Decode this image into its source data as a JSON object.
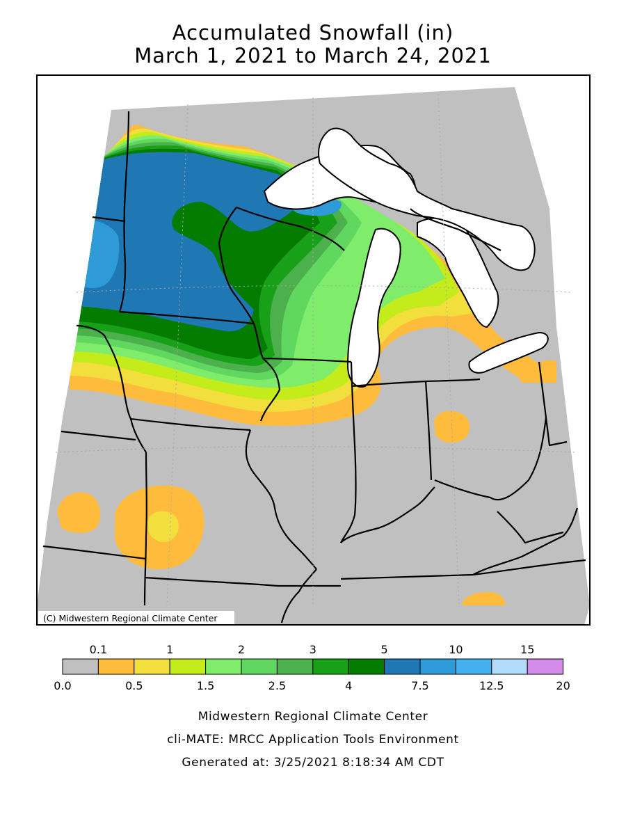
{
  "title": {
    "line1": "Accumulated Snowfall (in)",
    "line2": "March 1, 2021 to March 24, 2021"
  },
  "map": {
    "copyright": "(C) Midwestern Regional Climate Center",
    "colors": {
      "background": "#c0c0c0",
      "lake": "#ffffff",
      "border": "#000000"
    }
  },
  "legend": {
    "top_labels": [
      "0.1",
      "1",
      "2",
      "3",
      "5",
      "10",
      "15"
    ],
    "bottom_labels": [
      "0.0",
      "0.5",
      "1.5",
      "2.5",
      "4",
      "7.5",
      "12.5",
      "20"
    ],
    "colors": [
      "#c0c0c0",
      "#ffbb3b",
      "#f2de3c",
      "#c4eb1a",
      "#80ec6c",
      "#60d860",
      "#4cb04c",
      "#18a018",
      "#037c00",
      "#1f77b4",
      "#2e9ad8",
      "#45b0ee",
      "#b3dcfb",
      "#d28be8"
    ]
  },
  "credits": {
    "line1": "Midwestern Regional Climate Center",
    "line2": "cli-MATE: MRCC Application Tools Environment",
    "line3": "Generated at: 3/25/2021 8:18:34 AM CDT"
  }
}
